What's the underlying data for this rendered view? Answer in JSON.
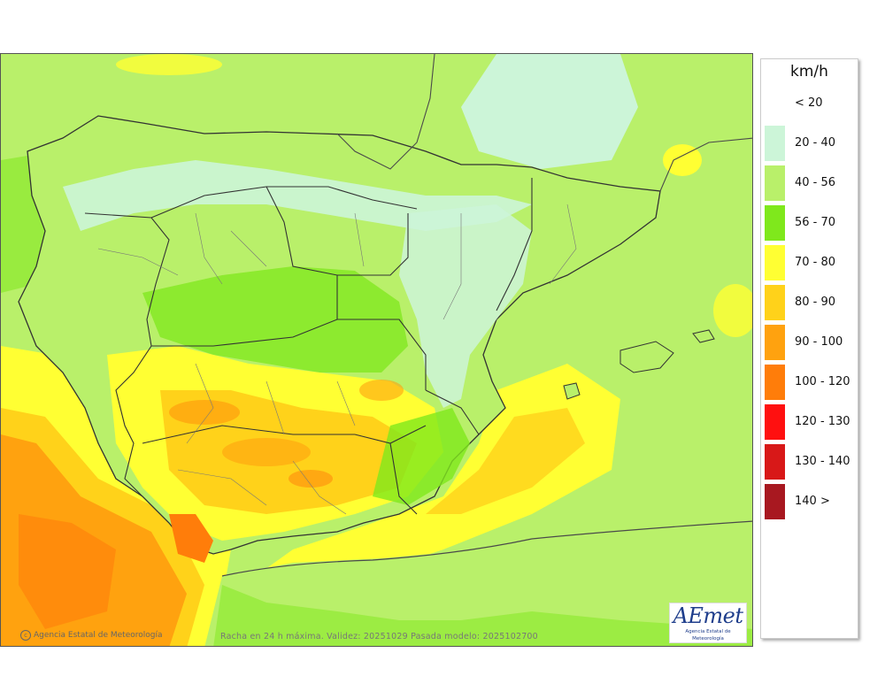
{
  "legend": {
    "unit": "km/h",
    "items": [
      {
        "label": "< 20",
        "color": "#ffffff"
      },
      {
        "label": "20 - 40",
        "color": "#ccf5d8"
      },
      {
        "label": "40 - 56",
        "color": "#b9f06a"
      },
      {
        "label": "56 - 70",
        "color": "#7fe81c"
      },
      {
        "label": "70 - 80",
        "color": "#ffff33"
      },
      {
        "label": "80 - 90",
        "color": "#ffd21a"
      },
      {
        "label": "90 - 100",
        "color": "#ffa20f"
      },
      {
        "label": "100 - 120",
        "color": "#ff7d0a"
      },
      {
        "label": "120 - 130",
        "color": "#ff1010"
      },
      {
        "label": "130 - 140",
        "color": "#d81818"
      },
      {
        "label": "140 >",
        "color": "#a81820"
      }
    ]
  },
  "map": {
    "credit": "Agencia Estatal de Meteorología",
    "caption": "Racha en 24 h máxima. Validez: 20251029 Pasada modelo: 2025102700",
    "logo_text": "AEmet",
    "logo_subtitle": "Agencia Estatal de Meteorología"
  }
}
